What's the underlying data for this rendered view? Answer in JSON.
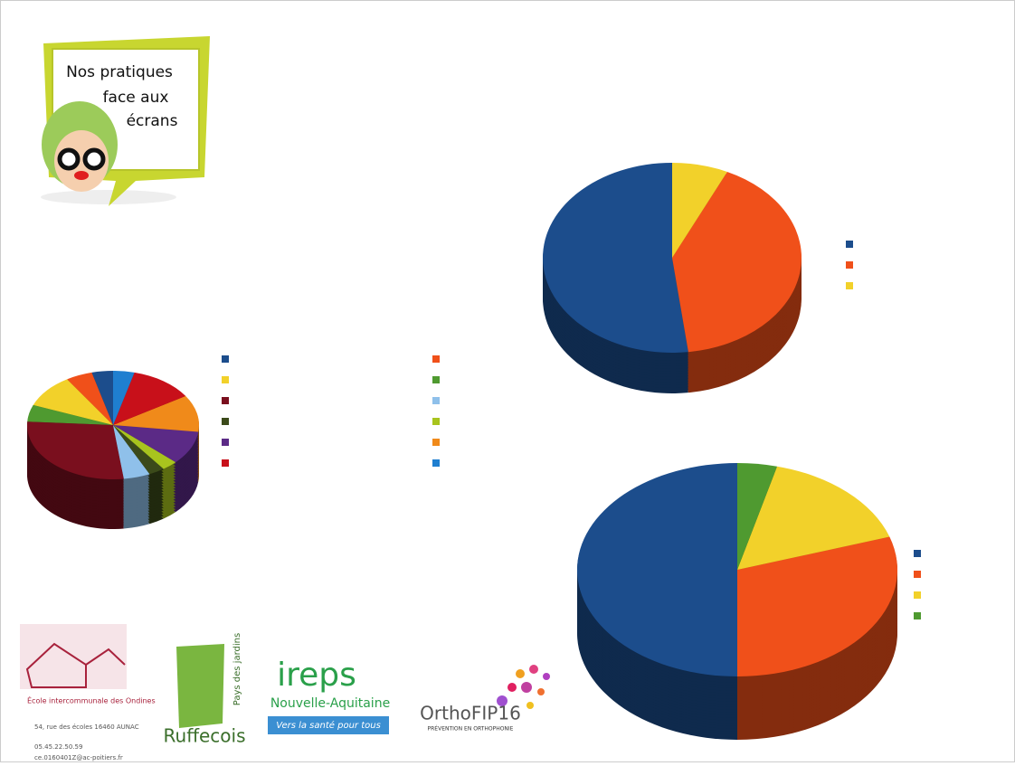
{
  "poster": {
    "bubble": "Nos pratiques face aux écrans",
    "school": "École intercommunale des Ondines",
    "address": "54, rue des écoles 16460 AUNAC",
    "phone": "05.45.22.50.59",
    "email": "ce.0160401Z@ac-poitiers.fr",
    "ruffec": "Ruffecois",
    "ruffec_sub": "Pays des jardins",
    "ireps": "ireps",
    "ireps_region": "Nouvelle-Aquitaine",
    "ireps_tag": "Vers la santé pour tous",
    "ortho": "OrthoFIP16",
    "ortho_tag": "PRÉVENTION EN ORTHOPHONIE"
  },
  "chart_data": [
    {
      "type": "pie",
      "values": [
        52,
        41,
        7
      ],
      "colors": [
        "#1c4d8c",
        "#f0501a",
        "#f2d12a"
      ]
    },
    {
      "type": "pie",
      "values": [
        50,
        30,
        16,
        4
      ],
      "colors": [
        "#1c4d8c",
        "#f0501a",
        "#f2d12a",
        "#4f9a30"
      ]
    },
    {
      "type": "pie",
      "values": [
        4,
        5,
        10,
        5,
        28,
        5,
        3,
        3,
        10,
        11,
        12,
        4
      ],
      "colors": [
        "#1c4d8c",
        "#f0501a",
        "#f2d12a",
        "#4f9a30",
        "#7a0f1e",
        "#8fc0ea",
        "#3b4a1a",
        "#a8c41e",
        "#5b2a86",
        "#f08a1a",
        "#c8101a",
        "#1f7fd0"
      ]
    }
  ]
}
